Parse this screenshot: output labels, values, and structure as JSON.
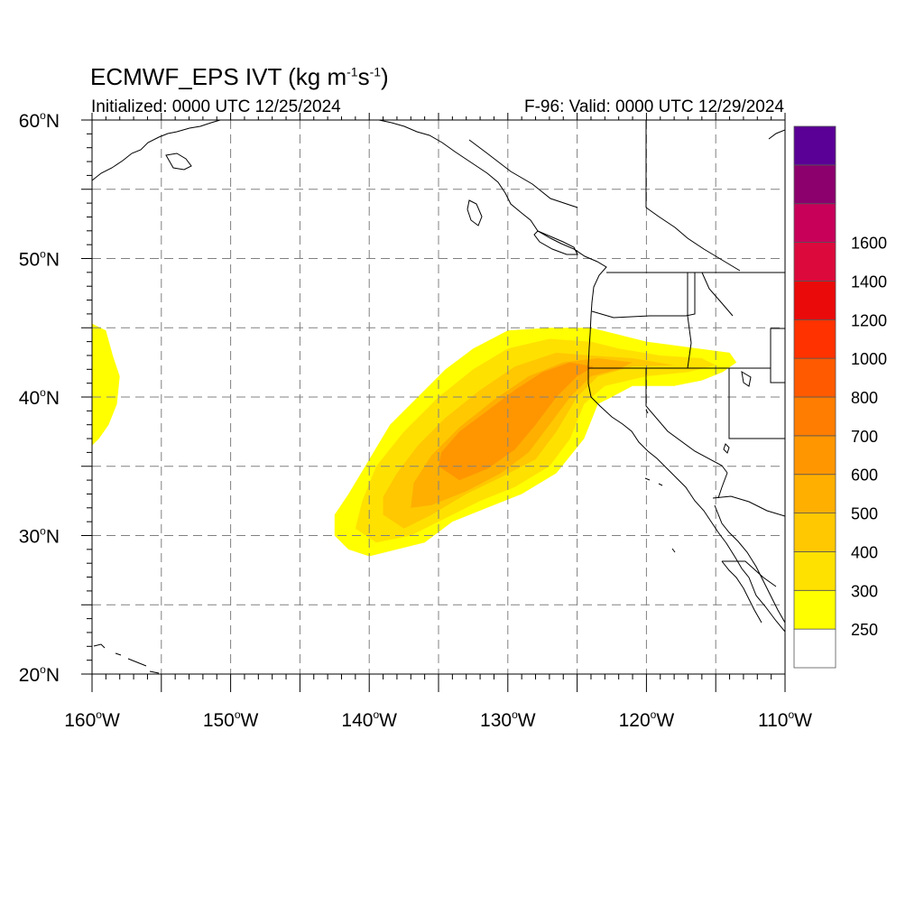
{
  "title": {
    "main": "ECMWF_EPS IVT (kg m",
    "exp1": "-1",
    "mid": "s",
    "exp2": "-1",
    "close": ")"
  },
  "initialized": "Initialized: 0000 UTC 12/25/2024",
  "valid": "F-96: Valid: 0000 UTC 12/29/2024",
  "map": {
    "lon_range": [
      -160,
      -110
    ],
    "lat_range": [
      20,
      60
    ],
    "lat_labels": [
      {
        "lat": 60,
        "num": "60",
        "hemi": "N"
      },
      {
        "lat": 50,
        "num": "50",
        "hemi": "N"
      },
      {
        "lat": 40,
        "num": "40",
        "hemi": "N"
      },
      {
        "lat": 30,
        "num": "30",
        "hemi": "N"
      },
      {
        "lat": 20,
        "num": "20",
        "hemi": "N"
      }
    ],
    "lon_labels": [
      {
        "lon": -160,
        "num": "160",
        "hemi": "W"
      },
      {
        "lon": -150,
        "num": "150",
        "hemi": "W"
      },
      {
        "lon": -140,
        "num": "140",
        "hemi": "W"
      },
      {
        "lon": -130,
        "num": "130",
        "hemi": "W"
      },
      {
        "lon": -120,
        "num": "120",
        "hemi": "W"
      },
      {
        "lon": -110,
        "num": "110",
        "hemi": "W"
      }
    ],
    "grid_lons": [
      -155,
      -150,
      -145,
      -140,
      -135,
      -130,
      -125,
      -120,
      -115
    ],
    "grid_lats": [
      25,
      30,
      35,
      40,
      45,
      50,
      55
    ]
  },
  "colorbar": {
    "colors": [
      "#ffffff",
      "#ffff00",
      "#ffe100",
      "#ffc800",
      "#ffaf00",
      "#ff9600",
      "#ff7d00",
      "#ff5a00",
      "#ff3200",
      "#eb0a0a",
      "#dc0a3c",
      "#c8005a",
      "#8c006e",
      "#5a0096"
    ],
    "labels": [
      "250",
      "300",
      "400",
      "500",
      "600",
      "700",
      "800",
      "1000",
      "1200",
      "1400",
      "1600"
    ]
  },
  "ivt_field": {
    "units": "kg m-1 s-1",
    "regions": [
      {
        "level": 250,
        "color": "#ffff00",
        "polygon": [
          [
            -142.5,
            30
          ],
          [
            -141.5,
            29
          ],
          [
            -140,
            28.5
          ],
          [
            -138,
            29
          ],
          [
            -136,
            29.5
          ],
          [
            -134,
            31
          ],
          [
            -131.5,
            32
          ],
          [
            -129,
            33
          ],
          [
            -126.5,
            34.5
          ],
          [
            -124.5,
            37
          ],
          [
            -123.5,
            39.5
          ],
          [
            -122.5,
            40
          ],
          [
            -121,
            40.8
          ],
          [
            -118,
            40.8
          ],
          [
            -116,
            41.2
          ],
          [
            -114.5,
            41.8
          ],
          [
            -113.5,
            42.5
          ],
          [
            -114,
            43.2
          ],
          [
            -117,
            43.6
          ],
          [
            -120,
            44
          ],
          [
            -122,
            44.5
          ],
          [
            -124,
            45
          ],
          [
            -127,
            45
          ],
          [
            -130,
            44.8
          ],
          [
            -132.5,
            43.5
          ],
          [
            -134.5,
            42
          ],
          [
            -136.5,
            40
          ],
          [
            -138.5,
            38
          ],
          [
            -140,
            35.5
          ],
          [
            -141.5,
            33
          ],
          [
            -142.5,
            31.5
          ]
        ]
      },
      {
        "level": 250,
        "color": "#ffff00",
        "polygon": [
          [
            -160,
            45.3
          ],
          [
            -159,
            44.8
          ],
          [
            -158.5,
            43
          ],
          [
            -158,
            41.5
          ],
          [
            -158.2,
            39.5
          ],
          [
            -158.8,
            38
          ],
          [
            -159.5,
            37
          ],
          [
            -160,
            36.5
          ]
        ]
      },
      {
        "level": 300,
        "color": "#ffe100",
        "polygon": [
          [
            -141,
            30.5
          ],
          [
            -139.5,
            29.5
          ],
          [
            -137,
            30
          ],
          [
            -135,
            31
          ],
          [
            -132,
            32.5
          ],
          [
            -129.5,
            33.5
          ],
          [
            -127,
            35
          ],
          [
            -125.5,
            37
          ],
          [
            -124.5,
            39.5
          ],
          [
            -123,
            40.8
          ],
          [
            -120,
            41.5
          ],
          [
            -117,
            41.8
          ],
          [
            -115,
            42.3
          ],
          [
            -116,
            42.8
          ],
          [
            -119,
            43
          ],
          [
            -122,
            43.5
          ],
          [
            -124,
            44
          ],
          [
            -127,
            44.2
          ],
          [
            -130,
            43.5
          ],
          [
            -132.5,
            42
          ],
          [
            -135,
            40
          ],
          [
            -137.5,
            37.5
          ],
          [
            -139.5,
            35
          ],
          [
            -140.5,
            32.5
          ]
        ]
      },
      {
        "level": 400,
        "color": "#ffc800",
        "polygon": [
          [
            -139,
            31.5
          ],
          [
            -137.5,
            30.5
          ],
          [
            -135.5,
            31.5
          ],
          [
            -133,
            33
          ],
          [
            -130.5,
            34.2
          ],
          [
            -128,
            35.5
          ],
          [
            -126.5,
            37.5
          ],
          [
            -125,
            40
          ],
          [
            -123.5,
            41.5
          ],
          [
            -121,
            42.2
          ],
          [
            -118,
            42.3
          ],
          [
            -121,
            42.8
          ],
          [
            -124,
            43
          ],
          [
            -126.5,
            43.2
          ],
          [
            -129.5,
            42.2
          ],
          [
            -132,
            40.5
          ],
          [
            -134.5,
            38.5
          ],
          [
            -136.5,
            36.5
          ],
          [
            -138,
            34.5
          ],
          [
            -139,
            32.8
          ]
        ]
      },
      {
        "level": 500,
        "color": "#ffaf00",
        "polygon": [
          [
            -137,
            32
          ],
          [
            -135.5,
            32.2
          ],
          [
            -133,
            33.2
          ],
          [
            -130.5,
            34.5
          ],
          [
            -128.5,
            36
          ],
          [
            -127,
            38
          ],
          [
            -125.5,
            40
          ],
          [
            -124,
            41.5
          ],
          [
            -122,
            42
          ],
          [
            -121,
            42.5
          ],
          [
            -123.5,
            42.8
          ],
          [
            -126,
            42.5
          ],
          [
            -128.5,
            41.5
          ],
          [
            -131,
            39.8
          ],
          [
            -133.5,
            37.8
          ],
          [
            -135.5,
            35.8
          ],
          [
            -136.8,
            33.8
          ]
        ]
      },
      {
        "level": 600,
        "color": "#ff9600",
        "polygon": [
          [
            -135,
            35
          ],
          [
            -133.5,
            34
          ],
          [
            -131.5,
            34.8
          ],
          [
            -129.5,
            36.2
          ],
          [
            -128,
            38
          ],
          [
            -126.5,
            40
          ],
          [
            -125,
            41.5
          ],
          [
            -123.8,
            42.2
          ],
          [
            -125.5,
            42.5
          ],
          [
            -127.5,
            41.8
          ],
          [
            -129.5,
            40.5
          ],
          [
            -131.5,
            39
          ],
          [
            -133.5,
            37.5
          ],
          [
            -134.8,
            36
          ]
        ]
      }
    ]
  }
}
